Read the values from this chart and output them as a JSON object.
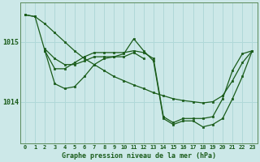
{
  "title": "Graphe pression niveau de la mer (hPa)",
  "bg_color": "#cce8e8",
  "grid_color": "#b0d8d8",
  "line_color": "#1a5c1a",
  "marker_color": "#1a5c1a",
  "xlim": [
    -0.5,
    23.5
  ],
  "ylim": [
    1013.3,
    1015.65
  ],
  "yticks": [
    1014,
    1015
  ],
  "xticks": [
    0,
    1,
    2,
    3,
    4,
    5,
    6,
    7,
    8,
    9,
    10,
    11,
    12,
    13,
    14,
    15,
    16,
    17,
    18,
    19,
    20,
    21,
    22,
    23
  ],
  "series": [
    {
      "x": [
        0,
        1,
        2,
        3,
        4,
        5,
        6,
        7,
        8,
        9,
        10,
        11,
        12,
        13,
        14,
        15,
        16,
        17,
        18,
        19,
        20,
        21,
        22,
        23
      ],
      "y": [
        1015.45,
        1015.42,
        1015.3,
        1015.15,
        1015.0,
        1014.85,
        1014.72,
        1014.62,
        1014.52,
        1014.42,
        1014.35,
        1014.28,
        1014.22,
        1014.15,
        1014.1,
        1014.05,
        1014.02,
        1014.0,
        1013.98,
        1014.0,
        1014.1,
        1014.35,
        1014.65,
        1014.85
      ]
    },
    {
      "x": [
        0,
        1,
        2,
        3,
        4,
        5,
        6,
        7,
        8,
        9,
        10,
        11,
        12,
        13,
        14,
        15,
        16,
        17,
        18,
        19,
        20,
        21,
        22,
        23
      ],
      "y": [
        1015.45,
        1015.42,
        1014.85,
        1014.55,
        1014.55,
        1014.65,
        1014.75,
        1014.82,
        1014.82,
        1014.82,
        1014.82,
        1014.85,
        1014.82,
        1014.72,
        1013.75,
        1013.65,
        1013.72,
        1013.72,
        1013.72,
        1013.75,
        1014.05,
        1014.52,
        1014.8,
        1014.85
      ]
    },
    {
      "x": [
        2,
        3,
        4,
        5,
        6,
        7,
        8,
        9,
        10,
        11,
        12
      ],
      "y": [
        1014.85,
        1014.3,
        1014.22,
        1014.25,
        1014.42,
        1014.62,
        1014.72,
        1014.75,
        1014.75,
        1014.82,
        1014.72
      ]
    },
    {
      "x": [
        2,
        3,
        4,
        5,
        6,
        7,
        8,
        9,
        10,
        11,
        12,
        13,
        14,
        15,
        16,
        17,
        18,
        19,
        20,
        21,
        22,
        23
      ],
      "y": [
        1014.88,
        1014.72,
        1014.62,
        1014.62,
        1014.68,
        1014.75,
        1014.75,
        1014.75,
        1014.8,
        1015.05,
        1014.85,
        1014.68,
        1013.72,
        1013.62,
        1013.68,
        1013.68,
        1013.58,
        1013.62,
        1013.72,
        1014.05,
        1014.42,
        1014.85
      ]
    }
  ]
}
